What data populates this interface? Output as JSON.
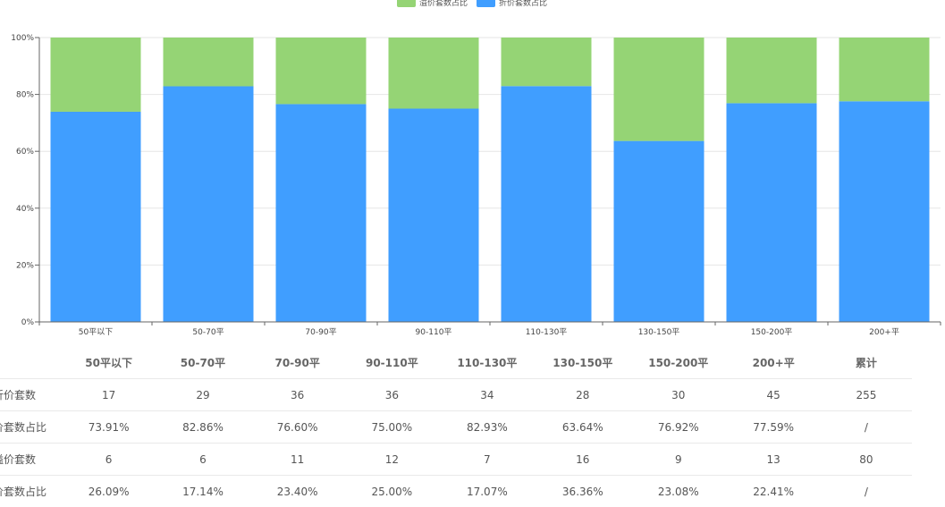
{
  "legend": {
    "items": [
      {
        "label": "溢价套数占比",
        "color": "#95d475"
      },
      {
        "label": "折价套数占比",
        "color": "#409eff"
      }
    ]
  },
  "chart_data": {
    "type": "bar",
    "stacked": true,
    "categories": [
      "50平以下",
      "50-70平",
      "70-90平",
      "90-110平",
      "110-130平",
      "130-150平",
      "150-200平",
      "200+平"
    ],
    "series": [
      {
        "name": "折价套数占比",
        "color": "#409eff",
        "values": [
          73.91,
          82.86,
          76.6,
          75.0,
          82.93,
          63.64,
          76.92,
          77.59
        ]
      },
      {
        "name": "溢价套数占比",
        "color": "#95d475",
        "values": [
          26.09,
          17.14,
          23.4,
          25.0,
          17.07,
          36.36,
          23.08,
          22.41
        ]
      }
    ],
    "yticks": [
      "0%",
      "20%",
      "40%",
      "60%",
      "80%",
      "100%"
    ],
    "ylim": [
      0,
      100
    ],
    "grid": true,
    "legend_position": "top-center"
  },
  "table": {
    "headers": [
      "",
      "50平以下",
      "50-70平",
      "70-90平",
      "90-110平",
      "110-130平",
      "130-150平",
      "150-200平",
      "200+平",
      "累计"
    ],
    "rows": [
      [
        "折价套数",
        "17",
        "29",
        "36",
        "36",
        "34",
        "28",
        "30",
        "45",
        "255"
      ],
      [
        "折价套数占比",
        "73.91%",
        "82.86%",
        "76.60%",
        "75.00%",
        "82.93%",
        "63.64%",
        "76.92%",
        "77.59%",
        "/"
      ],
      [
        "溢价套数",
        "6",
        "6",
        "11",
        "12",
        "7",
        "16",
        "9",
        "13",
        "80"
      ],
      [
        "溢价套数占比",
        "26.09%",
        "17.14%",
        "23.40%",
        "25.00%",
        "17.07%",
        "36.36%",
        "23.08%",
        "22.41%",
        "/"
      ]
    ]
  }
}
